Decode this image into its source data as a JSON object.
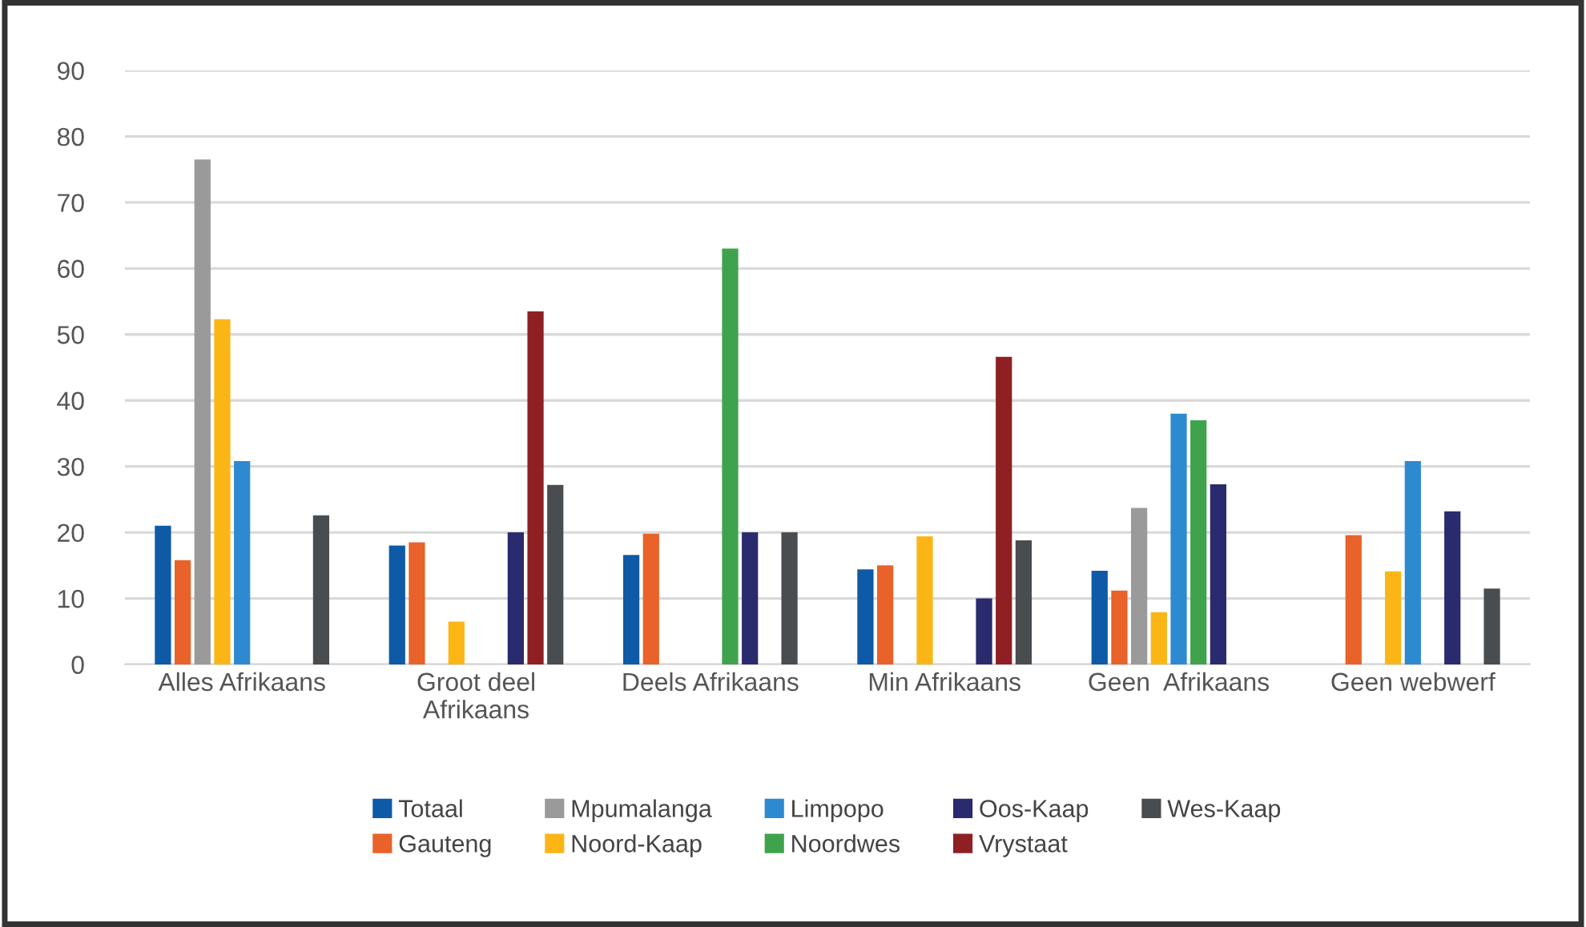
{
  "chart_data": {
    "type": "bar",
    "categories": [
      "Alles Afrikaans",
      "Groot deel\nAfrikaans",
      "Deels Afrikaans",
      "Min Afrikaans",
      "Geen  Afrikaans",
      "Geen webwerf"
    ],
    "series": [
      {
        "name": "Totaal",
        "color": "#0e5aa7",
        "values": [
          21,
          18,
          16.6,
          14.4,
          14.2,
          null
        ]
      },
      {
        "name": "Gauteng",
        "color": "#e8622a",
        "values": [
          15.8,
          18.5,
          19.8,
          15,
          11.2,
          19.6
        ]
      },
      {
        "name": "Mpumalanga",
        "color": "#9a9a9a",
        "values": [
          76.5,
          null,
          null,
          null,
          23.7,
          null
        ]
      },
      {
        "name": "Noord-Kaap",
        "color": "#fbb616",
        "values": [
          52.3,
          6.5,
          null,
          19.4,
          7.9,
          14.1
        ]
      },
      {
        "name": "Limpopo",
        "color": "#2e8ad0",
        "values": [
          30.8,
          null,
          null,
          null,
          38,
          30.8
        ]
      },
      {
        "name": "Noordwes",
        "color": "#3fa34d",
        "values": [
          null,
          null,
          63,
          null,
          37,
          null
        ]
      },
      {
        "name": "Oos-Kaap",
        "color": "#2a2a6e",
        "values": [
          null,
          20,
          20,
          10,
          27.3,
          23.2
        ]
      },
      {
        "name": "Vrystaat",
        "color": "#8e2024",
        "values": [
          null,
          53.5,
          null,
          46.6,
          null,
          null
        ]
      },
      {
        "name": "Wes-Kaap",
        "color": "#4a4d4f",
        "values": [
          22.6,
          27.2,
          20,
          18.8,
          null,
          11.5
        ]
      }
    ],
    "ylim": [
      0,
      90
    ],
    "yticks": [
      0,
      10,
      20,
      30,
      40,
      50,
      60,
      70,
      80,
      90
    ],
    "grid": "y",
    "legend": "bottom"
  }
}
